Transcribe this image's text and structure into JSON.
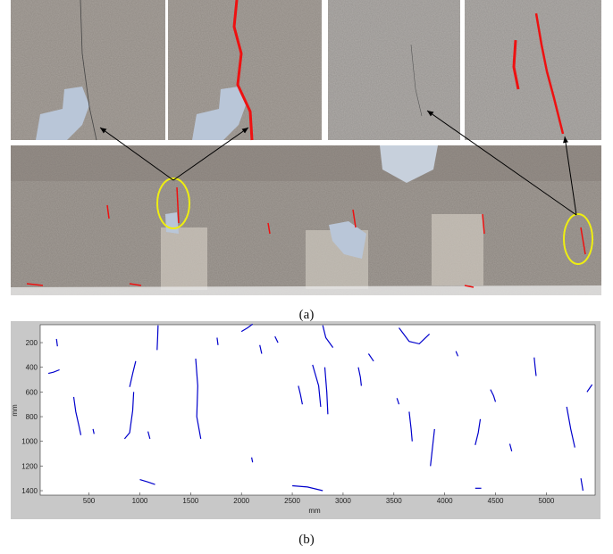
{
  "figure": {
    "caption_a": "(a)",
    "caption_b": "(b)"
  },
  "chart_data": {
    "type": "line",
    "color": "#0000cc",
    "x_label": "mm",
    "y_label": "mm",
    "xlim": [
      20,
      5480
    ],
    "ylim": [
      55,
      1436
    ],
    "y_reversed": true,
    "xticks": [
      500,
      1000,
      1500,
      2000,
      2500,
      3000,
      3500,
      4000,
      4500,
      5000
    ],
    "yticks": [
      200,
      400,
      600,
      800,
      1000,
      1200,
      1400
    ],
    "series": [
      {
        "x": [
          180,
          190
        ],
        "y": [
          170,
          230
        ]
      },
      {
        "x": [
          100,
          150,
          210
        ],
        "y": [
          450,
          440,
          420
        ]
      },
      {
        "x": [
          350,
          370,
          400,
          420
        ],
        "y": [
          640,
          760,
          870,
          950
        ]
      },
      {
        "x": [
          540,
          550
        ],
        "y": [
          900,
          940
        ]
      },
      {
        "x": [
          960,
          930,
          900
        ],
        "y": [
          350,
          450,
          560
        ]
      },
      {
        "x": [
          940,
          930,
          900,
          850
        ],
        "y": [
          600,
          750,
          930,
          980
        ]
      },
      {
        "x": [
          1180,
          1175,
          1170
        ],
        "y": [
          60,
          160,
          260
        ]
      },
      {
        "x": [
          1000,
          1080,
          1150
        ],
        "y": [
          1310,
          1330,
          1350
        ]
      },
      {
        "x": [
          1550,
          1570,
          1560,
          1600
        ],
        "y": [
          330,
          550,
          800,
          980
        ]
      },
      {
        "x": [
          1760,
          1770
        ],
        "y": [
          160,
          220
        ]
      },
      {
        "x": [
          2000,
          2060,
          2110
        ],
        "y": [
          110,
          80,
          50
        ]
      },
      {
        "x": [
          2180,
          2200
        ],
        "y": [
          220,
          290
        ]
      },
      {
        "x": [
          2330,
          2360
        ],
        "y": [
          150,
          200
        ]
      },
      {
        "x": [
          2500,
          2650,
          2800
        ],
        "y": [
          1360,
          1370,
          1400
        ]
      },
      {
        "x": [
          2560,
          2580,
          2600
        ],
        "y": [
          550,
          620,
          700
        ]
      },
      {
        "x": [
          2700,
          2760,
          2780
        ],
        "y": [
          380,
          550,
          720
        ]
      },
      {
        "x": [
          2820,
          2840,
          2850
        ],
        "y": [
          400,
          600,
          780
        ]
      },
      {
        "x": [
          2800,
          2830,
          2900
        ],
        "y": [
          60,
          160,
          240
        ]
      },
      {
        "x": [
          3150,
          3170,
          3180
        ],
        "y": [
          400,
          480,
          550
        ]
      },
      {
        "x": [
          3250,
          3300
        ],
        "y": [
          290,
          350
        ]
      },
      {
        "x": [
          3550,
          3650,
          3750,
          3850
        ],
        "y": [
          80,
          190,
          210,
          130
        ]
      },
      {
        "x": [
          3530,
          3550
        ],
        "y": [
          650,
          700
        ]
      },
      {
        "x": [
          3650,
          3670,
          3680
        ],
        "y": [
          760,
          900,
          1000
        ]
      },
      {
        "x": [
          3900,
          3880,
          3860
        ],
        "y": [
          900,
          1050,
          1200
        ]
      },
      {
        "x": [
          4450,
          4480,
          4500
        ],
        "y": [
          580,
          630,
          680
        ]
      },
      {
        "x": [
          4350,
          4330,
          4300
        ],
        "y": [
          820,
          930,
          1030
        ]
      },
      {
        "x": [
          4640,
          4660
        ],
        "y": [
          1020,
          1080
        ]
      },
      {
        "x": [
          4880,
          4890,
          4900
        ],
        "y": [
          320,
          400,
          470
        ]
      },
      {
        "x": [
          5200,
          5240,
          5280
        ],
        "y": [
          720,
          900,
          1050
        ]
      },
      {
        "x": [
          5400,
          5450
        ],
        "y": [
          600,
          540
        ]
      },
      {
        "x": [
          5340,
          5360
        ],
        "y": [
          1300,
          1400
        ]
      },
      {
        "x": [
          4300,
          4360
        ],
        "y": [
          1380,
          1380
        ]
      },
      {
        "x": [
          2100,
          2110
        ],
        "y": [
          1130,
          1170
        ]
      },
      {
        "x": [
          4110,
          4130
        ],
        "y": [
          270,
          310
        ]
      },
      {
        "x": [
          1080,
          1100
        ],
        "y": [
          920,
          980
        ]
      }
    ]
  }
}
